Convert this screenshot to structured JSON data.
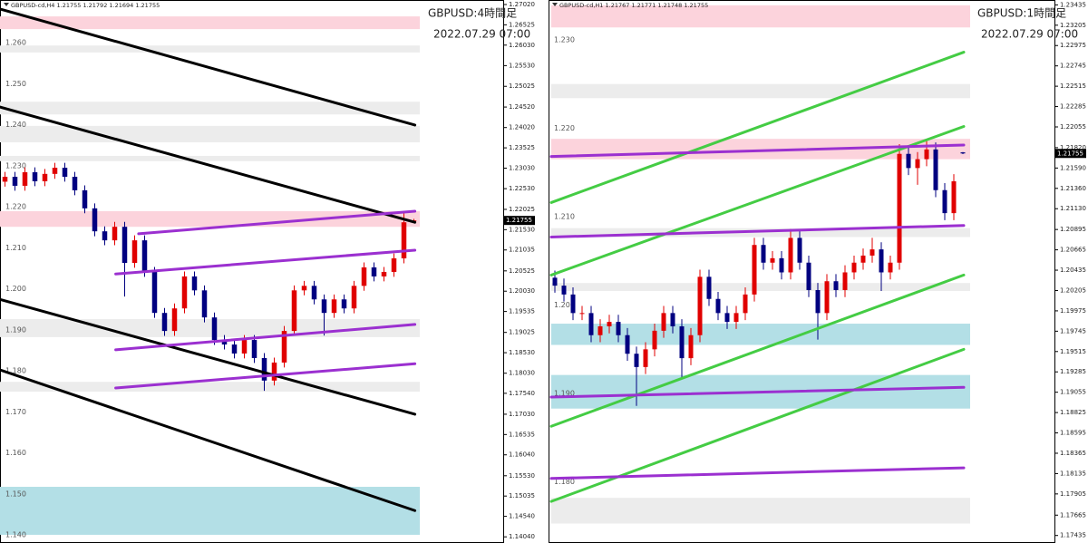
{
  "chart_data": [
    {
      "type": "candlestick",
      "title": "GBPUSD-cd,H4 1.21755 1.21792 1.21694 1.21755",
      "label": "GBPUSD:4時間足",
      "date": "2022.07.29 07:00",
      "ylim": [
        1.1389,
        1.2713
      ],
      "yticks": [
        {
          "value": 1.2702,
          "label": "1.27020"
        },
        1.26525,
        {
          "value": 1.2603,
          "label": "1.26030"
        },
        {
          "value": 1.2553,
          "label": "1.25530"
        },
        1.25025,
        {
          "value": 1.2452,
          "label": "1.24520"
        },
        {
          "value": 1.2402,
          "label": "1.24020"
        },
        1.23525,
        {
          "value": 1.2303,
          "label": "1.23030"
        },
        {
          "value": 1.2253,
          "label": "1.22530"
        },
        1.22025,
        {
          "value": 1.2153,
          "label": "1.21530"
        },
        1.21035,
        1.20525,
        {
          "value": 1.2003,
          "label": "1.20030"
        },
        1.19535,
        1.19025,
        {
          "value": 1.1853,
          "label": "1.18530"
        },
        {
          "value": 1.1803,
          "label": "1.18030"
        },
        {
          "value": 1.1754,
          "label": "1.17540"
        },
        {
          "value": 1.1703,
          "label": "1.17030"
        },
        1.16535,
        {
          "value": 1.1604,
          "label": "1.16040"
        },
        {
          "value": 1.1553,
          "label": "1.15530"
        },
        1.15035,
        {
          "value": 1.1454,
          "label": "1.14540"
        },
        {
          "value": 1.1404,
          "label": "1.14040"
        }
      ],
      "level_labels": [
        {
          "value": 1.26,
          "label": "1.260"
        },
        {
          "value": 1.25,
          "label": "1.250"
        },
        {
          "value": 1.24,
          "label": "1.240"
        },
        {
          "value": 1.23,
          "label": "1.230"
        },
        {
          "value": 1.22,
          "label": "1.220"
        },
        {
          "value": 1.21,
          "label": "1.210"
        },
        {
          "value": 1.2,
          "label": "1.200"
        },
        {
          "value": 1.19,
          "label": "1.190"
        },
        {
          "value": 1.18,
          "label": "1.180"
        },
        {
          "value": 1.17,
          "label": "1.170"
        },
        {
          "value": 1.16,
          "label": "1.160"
        },
        {
          "value": 1.15,
          "label": "1.150"
        },
        {
          "value": 1.14,
          "label": "1.140"
        }
      ],
      "last_price": {
        "value": 1.21755,
        "label": "1.21755"
      },
      "up_color": "#e00000",
      "down_color": "#000080",
      "open": [
        1.227,
        1.2282,
        1.226,
        1.2293,
        1.2271,
        1.2289,
        1.2304,
        1.2282,
        1.2249,
        1.2205,
        1.2149,
        1.2127,
        1.216,
        1.2072,
        1.2127,
        1.205,
        1.195,
        1.1906,
        1.1961,
        1.2039,
        1.2005,
        1.1939,
        1.1884,
        1.1873,
        1.1851,
        1.1884,
        1.184,
        1.1785,
        1.1829,
        1.1906,
        1.2005,
        1.2016,
        1.1983,
        1.195,
        1.1983,
        1.1961,
        1.2016,
        1.2061,
        1.2039,
        1.205,
        1.2083,
        1.21755
      ],
      "high": [
        1.2294,
        1.2294,
        1.2305,
        1.2305,
        1.2301,
        1.2316,
        1.2316,
        1.2294,
        1.2261,
        1.2217,
        1.2161,
        1.2172,
        1.2172,
        1.2139,
        1.2139,
        1.2062,
        1.1962,
        1.1973,
        1.2051,
        1.2051,
        1.2017,
        1.1951,
        1.1896,
        1.1885,
        1.1896,
        1.1896,
        1.1852,
        1.1841,
        1.1918,
        1.2017,
        1.2028,
        1.2028,
        1.1995,
        1.1995,
        1.1995,
        1.2028,
        1.2073,
        1.2073,
        1.2062,
        1.2095,
        1.2198,
        1.21792
      ],
      "low": [
        1.2258,
        1.2248,
        1.2248,
        1.2259,
        1.2259,
        1.2277,
        1.227,
        1.2237,
        1.2193,
        1.2137,
        1.2115,
        1.2115,
        1.199,
        1.206,
        1.2038,
        1.1938,
        1.1894,
        1.1894,
        1.1949,
        1.1993,
        1.1927,
        1.1872,
        1.1861,
        1.1839,
        1.1839,
        1.1828,
        1.176,
        1.1773,
        1.1817,
        1.1894,
        1.1993,
        1.1971,
        1.1895,
        1.1938,
        1.1949,
        1.1949,
        1.2004,
        1.2027,
        1.2027,
        1.2038,
        1.2071,
        1.21694
      ],
      "close": [
        1.2282,
        1.226,
        1.2293,
        1.2271,
        1.2289,
        1.2304,
        1.2282,
        1.2249,
        1.2205,
        1.2149,
        1.2127,
        1.216,
        1.2072,
        1.2127,
        1.205,
        1.195,
        1.1906,
        1.1961,
        1.2039,
        1.2005,
        1.1939,
        1.1884,
        1.1873,
        1.1851,
        1.1884,
        1.184,
        1.1785,
        1.1829,
        1.1906,
        1.2005,
        1.2016,
        1.1983,
        1.195,
        1.1983,
        1.1961,
        1.2016,
        1.2061,
        1.2039,
        1.205,
        1.2083,
        1.2171,
        1.21755
      ],
      "zones": [
        {
          "range": [
            1.2642,
            1.2673
          ],
          "color": "#fcd3dc"
        },
        {
          "range": [
            1.2585,
            1.2602
          ],
          "color": "#ececec"
        },
        {
          "range": [
            1.2434,
            1.2465
          ],
          "color": "#ececec"
        },
        {
          "range": [
            1.2366,
            1.2406
          ],
          "color": "#ececec"
        },
        {
          "range": [
            1.232,
            1.2333
          ],
          "color": "#ececec"
        },
        {
          "range": [
            1.216,
            1.2198
          ],
          "color": "#fcd3dc"
        },
        {
          "range": [
            1.1891,
            1.1935
          ],
          "color": "#ececec"
        },
        {
          "range": [
            1.1758,
            1.1782
          ],
          "color": "#ececec"
        },
        {
          "range": [
            1.1409,
            1.1526
          ],
          "color": "#b3dfe6"
        }
      ],
      "lines": [
        {
          "x": [
            -0.5,
            41.1
          ],
          "values": [
            1.2691,
            1.2408
          ],
          "color": "#000000"
        },
        {
          "x": [
            -0.5,
            41.1
          ],
          "values": [
            1.2452,
            1.2171
          ],
          "color": "#000000"
        },
        {
          "x": [
            -0.5,
            41.1
          ],
          "values": [
            1.1983,
            1.1703
          ],
          "color": "#000000"
        },
        {
          "x": [
            -0.5,
            41.1
          ],
          "values": [
            1.1811,
            1.1468
          ],
          "color": "#000000"
        },
        {
          "x": [
            13.4,
            41.1
          ],
          "values": [
            1.2143,
            1.2198
          ],
          "color": "#9b30d0"
        },
        {
          "x": [
            11.1,
            41.1
          ],
          "values": [
            1.2045,
            1.2103
          ],
          "color": "#9b30d0"
        },
        {
          "x": [
            11.1,
            41.1
          ],
          "values": [
            1.186,
            1.1922
          ],
          "color": "#9b30d0"
        },
        {
          "x": [
            11.1,
            41.1
          ],
          "values": [
            1.1767,
            1.1826
          ],
          "color": "#9b30d0"
        }
      ]
    },
    {
      "type": "candlestick",
      "title": "GBPUSD-cd,H1 1.21767 1.21771 1.21748 1.21755",
      "label": "GBPUSD:1時間足",
      "date": "2022.07.29 07:00",
      "ylim": [
        1.1735,
        1.2349
      ],
      "yticks": [
        1.23435,
        1.23205,
        1.22975,
        1.22745,
        1.22515,
        1.22285,
        1.22055,
        {
          "value": 1.2182,
          "label": "1.21820"
        },
        {
          "value": 1.2159,
          "label": "1.21590"
        },
        {
          "value": 1.2136,
          "label": "1.21360"
        },
        {
          "value": 1.2113,
          "label": "1.21130"
        },
        1.20895,
        1.20665,
        1.20435,
        1.20205,
        1.19975,
        1.19745,
        1.19515,
        1.19285,
        1.19055,
        1.18825,
        1.18595,
        1.18365,
        1.18135,
        1.17905,
        1.17665,
        1.17435
      ],
      "level_labels": [
        {
          "value": 1.23,
          "label": "1.230"
        },
        {
          "value": 1.22,
          "label": "1.220"
        },
        {
          "value": 1.21,
          "label": "1.210"
        },
        {
          "value": 1.2,
          "label": "1.200"
        },
        {
          "value": 1.19,
          "label": "1.190"
        },
        {
          "value": 1.18,
          "label": "1.180"
        }
      ],
      "last_price": {
        "value": 1.21755,
        "label": "1.21755"
      },
      "up_color": "#e00000",
      "down_color": "#000080",
      "open": [
        1.2035,
        1.2026,
        1.2016,
        1.1995,
        1.1995,
        1.197,
        1.198,
        1.1985,
        1.197,
        1.1949,
        1.1934,
        1.1954,
        1.1975,
        1.1995,
        1.198,
        1.1944,
        1.197,
        1.2036,
        1.2011,
        1.1995,
        1.1985,
        1.1995,
        1.2016,
        1.2072,
        1.2052,
        1.2057,
        1.2041,
        1.208,
        1.2052,
        1.2021,
        1.1995,
        1.2031,
        1.2021,
        1.2041,
        1.2052,
        1.206,
        1.2067,
        1.2041,
        1.2052,
        1.2175,
        1.2159,
        1.2169,
        1.218,
        1.2134,
        1.2108,
        1.21767
      ],
      "high": [
        1.2043,
        1.2034,
        1.2024,
        1.2003,
        1.2003,
        1.1988,
        1.1993,
        1.1993,
        1.1978,
        1.1957,
        1.1962,
        1.1983,
        1.2003,
        1.2003,
        1.1988,
        1.1978,
        1.2044,
        1.2044,
        1.2019,
        1.2003,
        1.2003,
        1.2024,
        1.208,
        1.208,
        1.2065,
        1.2065,
        1.209,
        1.2088,
        1.206,
        1.2029,
        1.2039,
        1.2039,
        1.2049,
        1.206,
        1.2068,
        1.208,
        1.2075,
        1.206,
        1.2186,
        1.2183,
        1.2177,
        1.219,
        1.2188,
        1.2142,
        1.2152,
        1.21771
      ],
      "low": [
        1.2018,
        1.2008,
        1.1987,
        1.1987,
        1.1962,
        1.1962,
        1.1972,
        1.1962,
        1.1941,
        1.189,
        1.1926,
        1.1946,
        1.1967,
        1.1972,
        1.192,
        1.1936,
        1.1962,
        1.2003,
        1.1987,
        1.1977,
        1.1977,
        1.1987,
        1.2008,
        1.2044,
        1.2044,
        1.2033,
        1.2033,
        1.2044,
        1.2013,
        1.1965,
        1.1987,
        1.2013,
        1.2013,
        1.2033,
        1.2044,
        1.2052,
        1.202,
        1.2033,
        1.2044,
        1.2151,
        1.214,
        1.2161,
        1.2126,
        1.21,
        1.21,
        1.21748
      ],
      "close": [
        1.2026,
        1.2016,
        1.1995,
        1.1995,
        1.197,
        1.198,
        1.1985,
        1.197,
        1.1949,
        1.1934,
        1.1954,
        1.1975,
        1.1995,
        1.198,
        1.1944,
        1.197,
        1.2036,
        1.2011,
        1.1995,
        1.1985,
        1.1995,
        1.2016,
        1.2072,
        1.2052,
        1.2057,
        1.2041,
        1.208,
        1.2052,
        1.2021,
        1.1995,
        1.2031,
        1.2021,
        1.2041,
        1.2052,
        1.206,
        1.2067,
        1.2041,
        1.2052,
        1.2175,
        1.2159,
        1.2169,
        1.218,
        1.2134,
        1.2108,
        1.2144,
        1.21755
      ],
      "zones": [
        {
          "range": [
            1.2318,
            1.2343
          ],
          "color": "#fcd3dc"
        },
        {
          "range": [
            1.2238,
            1.2254
          ],
          "color": "#ececec"
        },
        {
          "range": [
            1.2169,
            1.2192
          ],
          "color": "#fcd3dc"
        },
        {
          "range": [
            1.2081,
            1.2091
          ],
          "color": "#ececec"
        },
        {
          "range": [
            1.202,
            1.2029
          ],
          "color": "#ececec"
        },
        {
          "range": [
            1.1959,
            1.1983
          ],
          "color": "#b3dfe6"
        },
        {
          "range": [
            1.1887,
            1.1925
          ],
          "color": "#b3dfe6"
        },
        {
          "range": [
            1.1757,
            1.1786
          ],
          "color": "#ececec"
        }
      ],
      "lines": [
        {
          "x": [
            -0.4,
            45.1
          ],
          "values": [
            1.212,
            1.229
          ],
          "color": "#44cc44"
        },
        {
          "x": [
            -0.4,
            45.1
          ],
          "values": [
            1.2038,
            1.2206
          ],
          "color": "#44cc44"
        },
        {
          "x": [
            -0.4,
            45.1
          ],
          "values": [
            1.1867,
            1.2038
          ],
          "color": "#44cc44"
        },
        {
          "x": [
            -0.4,
            45.1
          ],
          "values": [
            1.1782,
            1.1954
          ],
          "color": "#44cc44"
        },
        {
          "x": [
            -0.4,
            45.1
          ],
          "values": [
            1.2172,
            1.2185
          ],
          "color": "#9b30d0"
        },
        {
          "x": [
            -0.4,
            45.1
          ],
          "values": [
            1.2081,
            1.2094
          ],
          "color": "#9b30d0"
        },
        {
          "x": [
            -0.4,
            45.1
          ],
          "values": [
            1.19,
            1.1911
          ],
          "color": "#9b30d0"
        },
        {
          "x": [
            -0.4,
            45.1
          ],
          "values": [
            1.1808,
            1.182
          ],
          "color": "#9b30d0"
        }
      ]
    }
  ]
}
